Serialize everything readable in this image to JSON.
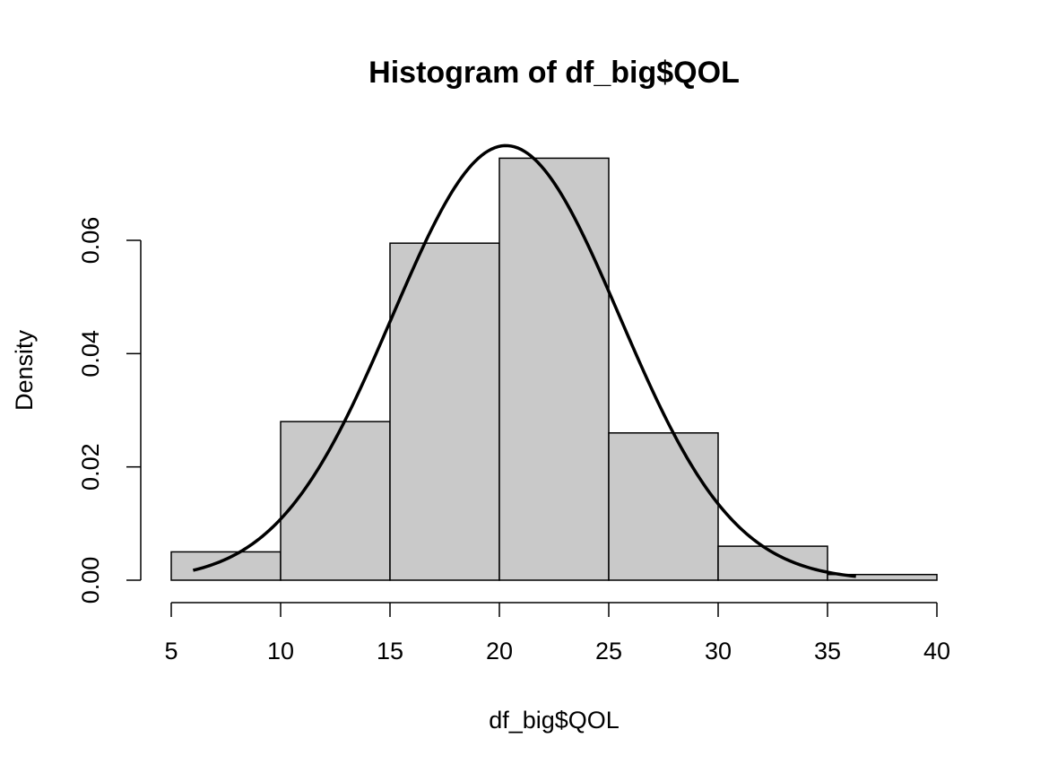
{
  "chart_data": {
    "type": "bar",
    "subtype": "histogram",
    "title": "Histogram of df_big$QOL",
    "xlabel": "df_big$QOL",
    "ylabel": "Density",
    "bins": [
      {
        "from": 5,
        "to": 10,
        "density": 0.005
      },
      {
        "from": 10,
        "to": 15,
        "density": 0.028
      },
      {
        "from": 15,
        "to": 20,
        "density": 0.0595
      },
      {
        "from": 20,
        "to": 25,
        "density": 0.0745
      },
      {
        "from": 25,
        "to": 30,
        "density": 0.026
      },
      {
        "from": 30,
        "to": 35,
        "density": 0.006
      },
      {
        "from": 35,
        "to": 40,
        "density": 0.001
      }
    ],
    "x_ticks": [
      5,
      10,
      15,
      20,
      25,
      30,
      35,
      40
    ],
    "x_tick_labels": [
      "5",
      "10",
      "15",
      "20",
      "25",
      "30",
      "35",
      "40"
    ],
    "y_ticks": [
      0,
      0.02,
      0.04,
      0.06
    ],
    "y_tick_labels": [
      "0.00",
      "0.02",
      "0.04",
      "0.06"
    ],
    "xlim": [
      5,
      40
    ],
    "ylim": [
      0,
      0.06
    ],
    "overlay_curve": {
      "type": "normal-density",
      "mean": 20.3,
      "sd": 5.2,
      "x_range": [
        6,
        36.3
      ]
    },
    "bar_fill": "#c9c9c9",
    "grid": false,
    "legend": "none"
  }
}
